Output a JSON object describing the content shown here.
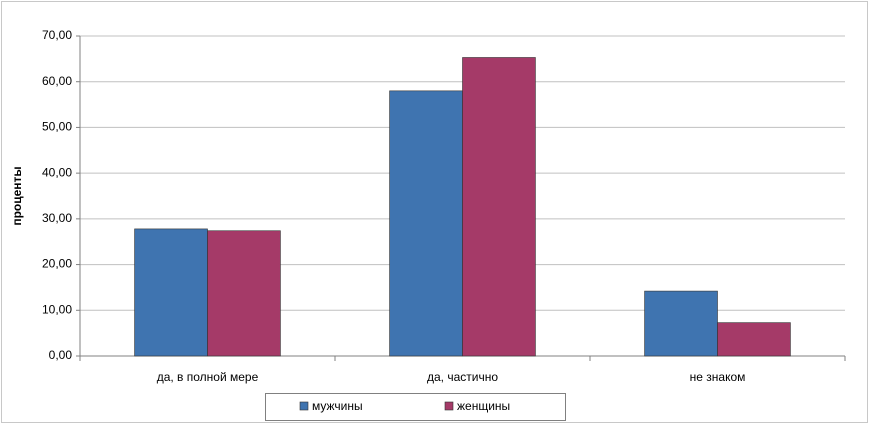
{
  "chart_data": {
    "type": "bar",
    "y_label": "проценты",
    "categories": [
      "да, в полной мере",
      "да, частично",
      "не знаком"
    ],
    "series": [
      {
        "name": "мужчины",
        "color": "#3f74b0",
        "values": [
          27.8,
          58.0,
          14.2
        ]
      },
      {
        "name": "женщины",
        "color": "#a53a68",
        "values": [
          27.4,
          65.3,
          7.3
        ]
      }
    ],
    "ylim": [
      0,
      70
    ],
    "yticks": [
      {
        "value": 0,
        "label": "0,00"
      },
      {
        "value": 10,
        "label": "10,00"
      },
      {
        "value": 20,
        "label": "20,00"
      },
      {
        "value": 30,
        "label": "30,00"
      },
      {
        "value": 40,
        "label": "40,00"
      },
      {
        "value": 50,
        "label": "50,00"
      },
      {
        "value": 60,
        "label": "60,00"
      },
      {
        "value": 70,
        "label": "70,00"
      }
    ],
    "grid": true,
    "legend": "bottom"
  }
}
